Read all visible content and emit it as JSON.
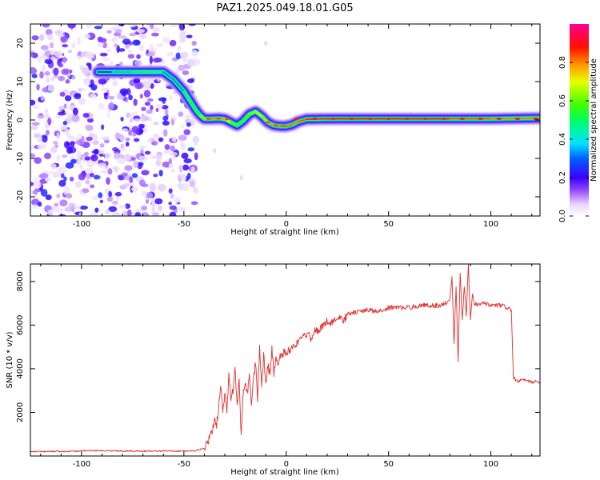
{
  "title": "PAZ1.2025.049.18.01.G05",
  "chart_data": [
    {
      "type": "heatmap",
      "xlabel": "Height of straight line (km)",
      "ylabel": "Frequency (Hz)",
      "xlim": [
        -125,
        124
      ],
      "ylim": [
        -25,
        25
      ],
      "xticks": [
        -100,
        -50,
        0,
        50,
        100
      ],
      "yticks": [
        -20,
        -10,
        0,
        10,
        20
      ],
      "colorbar": {
        "label": "Normalized spectral amplitude",
        "range": [
          0.0,
          1.0
        ],
        "ticks": [
          0.0,
          0.2,
          0.4,
          0.6,
          0.8
        ]
      },
      "ridge": {
        "x": [
          -92,
          -85,
          -75,
          -65,
          -60,
          -55,
          -50,
          -47,
          -44,
          -42,
          -40,
          -37,
          -33,
          -30,
          -27,
          -24,
          -21,
          -18,
          -15,
          -12,
          -9,
          -6,
          -3,
          0,
          3,
          6,
          10,
          20,
          40,
          60,
          80,
          100,
          124
        ],
        "y": [
          12.5,
          12.5,
          12.5,
          12.5,
          12.5,
          10.5,
          7.5,
          5,
          2.5,
          1.2,
          0.3,
          0.3,
          0.4,
          0.2,
          -0.6,
          -1.4,
          -0.2,
          1.5,
          2.2,
          1.0,
          -0.6,
          -1.4,
          -1.6,
          -1.6,
          -1.2,
          -0.4,
          0.2,
          0.3,
          0.3,
          0.3,
          0.3,
          0.3,
          0.5
        ],
        "amplitude": [
          0.25,
          0.3,
          0.42,
          0.45,
          0.35,
          0.3,
          0.35,
          0.55,
          0.45,
          0.55,
          0.72,
          0.8,
          0.82,
          0.75,
          0.65,
          0.5,
          0.55,
          0.6,
          0.65,
          0.7,
          0.78,
          0.8,
          0.82,
          0.85,
          0.8,
          0.82,
          0.85,
          0.88,
          0.9,
          0.9,
          0.85,
          0.82,
          0.8
        ]
      },
      "noise_region_x": [
        -125,
        -44
      ]
    },
    {
      "type": "line",
      "xlabel": "Height of straight line (km)",
      "ylabel": "SNR (10 * v/v)",
      "xlim": [
        -125,
        124
      ],
      "ylim": [
        0,
        8800
      ],
      "xticks": [
        -100,
        -50,
        0,
        50,
        100
      ],
      "yticks": [
        2000,
        4000,
        6000,
        8000
      ],
      "color": "#e03030",
      "x": [
        -125,
        -110,
        -95,
        -80,
        -65,
        -55,
        -45,
        -42,
        -40,
        -38,
        -36,
        -35,
        -34,
        -33,
        -32,
        -31,
        -30,
        -29,
        -28,
        -27,
        -26,
        -25,
        -24,
        -23,
        -22,
        -21,
        -20,
        -19,
        -18,
        -17,
        -16,
        -15,
        -14,
        -13,
        -12,
        -11,
        -10,
        -9,
        -8,
        -7,
        -6,
        -5,
        -4,
        -3,
        -2,
        -1,
        0,
        2,
        4,
        6,
        8,
        10,
        12,
        14,
        16,
        18,
        20,
        22,
        24,
        26,
        28,
        30,
        35,
        40,
        45,
        50,
        55,
        60,
        65,
        70,
        75,
        78,
        80,
        81,
        82,
        83,
        84,
        85,
        86,
        87,
        88,
        89,
        90,
        91,
        92,
        95,
        100,
        105,
        108,
        110,
        111,
        112,
        113,
        115,
        120,
        124
      ],
      "y": [
        200,
        210,
        250,
        230,
        220,
        230,
        230,
        300,
        350,
        700,
        1200,
        1700,
        1400,
        2300,
        3200,
        2100,
        2800,
        2100,
        3700,
        2600,
        3000,
        4000,
        2200,
        3600,
        800,
        3000,
        3300,
        2800,
        3700,
        2300,
        3500,
        4300,
        2600,
        5000,
        3200,
        4600,
        3300,
        4200,
        3700,
        4900,
        3800,
        4500,
        4200,
        4700,
        4500,
        4800,
        4700,
        4900,
        5100,
        5200,
        5400,
        5600,
        5400,
        5800,
        5700,
        6000,
        6200,
        6100,
        6300,
        6300,
        6200,
        6500,
        6600,
        6700,
        6600,
        6800,
        6800,
        6800,
        6900,
        6900,
        6900,
        7000,
        7200,
        8200,
        5200,
        7800,
        4300,
        8400,
        6200,
        7800,
        6400,
        8800,
        6200,
        7400,
        6900,
        7000,
        6900,
        6900,
        6800,
        6700,
        3600,
        3500,
        3400,
        3500,
        3400,
        3400
      ]
    }
  ]
}
